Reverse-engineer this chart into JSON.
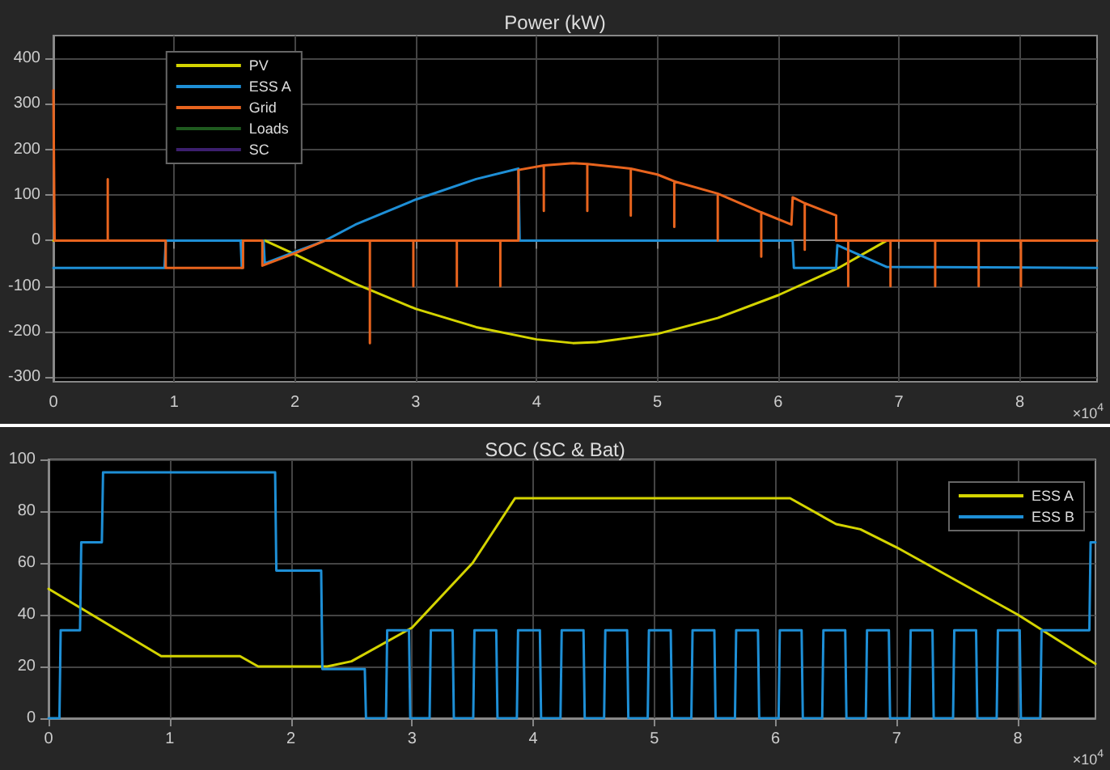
{
  "chart_data": [
    {
      "type": "line",
      "title": "Power (kW)",
      "marker": "none",
      "line_style": "solid",
      "grid": true,
      "legend": "top left",
      "xlim": [
        0,
        8.64
      ],
      "xticks": [
        0,
        1,
        2,
        3,
        4,
        5,
        6,
        7,
        8
      ],
      "ylim": [
        -310,
        450
      ],
      "yticks": [
        -300,
        -200,
        -100,
        0,
        100,
        200,
        300,
        400
      ],
      "annotations": [
        "×10$^{4}$"
      ],
      "series": [
        {
          "name": "PV",
          "color": "#d4d400",
          "x": [
            0,
            1.75,
            2,
            2.5,
            3,
            3.5,
            4,
            4.3,
            4.5,
            5,
            5.5,
            6,
            6.5,
            6.9,
            8.64
          ],
          "values": [
            0,
            0,
            -30,
            -95,
            -150,
            -190,
            -217,
            -225,
            -223,
            -205,
            -170,
            -120,
            -60,
            0,
            0
          ]
        },
        {
          "name": "ESS A",
          "color": "#1e8fd6",
          "x": [
            0,
            0.92,
            0.93,
            1.55,
            1.56,
            1.57,
            1.74,
            1.75,
            2,
            2.25,
            2.5,
            3,
            3.5,
            3.85,
            3.86,
            6.12,
            6.13,
            6.48,
            6.49,
            6.9,
            8.64
          ],
          "values": [
            -60,
            -60,
            0,
            0,
            -60,
            0,
            0,
            -50,
            -25,
            0,
            35,
            90,
            135,
            158,
            0,
            0,
            -60,
            -60,
            -10,
            -58,
            -60
          ]
        },
        {
          "name": "Grid",
          "color": "#e8641e",
          "x": [
            0,
            0.01,
            0.45,
            0.45,
            0.45,
            0.93,
            0.93,
            1.57,
            1.57,
            1.73,
            1.73,
            2,
            2.25,
            2.62,
            2.62,
            2.62,
            2.98,
            2.98,
            2.98,
            3.34,
            3.34,
            3.34,
            3.7,
            3.7,
            3.7,
            3.85,
            3.85,
            4.06,
            4.06,
            4.06,
            4.3,
            4.42,
            4.42,
            4.42,
            4.78,
            4.78,
            4.78,
            5,
            5.14,
            5.14,
            5.14,
            5.5,
            5.5,
            5.5,
            5.86,
            5.86,
            5.86,
            6.11,
            6.12,
            6.22,
            6.22,
            6.22,
            6.48,
            6.48,
            6.58,
            6.58,
            6.58,
            6.93,
            6.93,
            6.93,
            7.3,
            7.3,
            7.3,
            7.66,
            7.66,
            7.66,
            8.01,
            8.01,
            8.01,
            8.64
          ],
          "values": [
            330,
            0,
            0,
            135,
            0,
            0,
            -60,
            -60,
            0,
            0,
            -55,
            -28,
            0,
            0,
            -225,
            0,
            0,
            -100,
            0,
            0,
            -100,
            0,
            0,
            -100,
            0,
            0,
            155,
            165,
            65,
            165,
            170,
            168,
            65,
            168,
            158,
            55,
            158,
            145,
            130,
            30,
            130,
            103,
            0,
            103,
            62,
            -35,
            62,
            35,
            95,
            82,
            -20,
            82,
            55,
            0,
            0,
            -100,
            0,
            0,
            -100,
            0,
            0,
            -100,
            0,
            0,
            -100,
            0,
            0,
            -100,
            0,
            0
          ]
        },
        {
          "name": "Loads",
          "color": "#1f5a1f"
        },
        {
          "name": "SC",
          "color": "#3c1f6e"
        }
      ]
    },
    {
      "type": "line",
      "title": "SOC (SC & Bat)",
      "marker": "none",
      "line_style": "solid",
      "grid": true,
      "legend": "top right",
      "xlim": [
        0,
        8.64
      ],
      "xticks": [
        0,
        1,
        2,
        3,
        4,
        5,
        6,
        7,
        8
      ],
      "ylim": [
        0,
        100
      ],
      "yticks": [
        0,
        20,
        40,
        60,
        80,
        100
      ],
      "annotations": [
        "×10$^{4}$"
      ],
      "series": [
        {
          "name": "ESS A",
          "color": "#d4d400",
          "x": [
            0,
            0.93,
            1.58,
            1.73,
            2.3,
            2.5,
            3,
            3.5,
            3.85,
            6.12,
            6.5,
            6.7,
            7,
            8,
            8.64
          ],
          "values": [
            50,
            24,
            24,
            20,
            20,
            22,
            35,
            60,
            85,
            85,
            75,
            73,
            66,
            40,
            21
          ]
        },
        {
          "name": "ESS B",
          "color": "#1e8fd6",
          "x": [
            0,
            0.09,
            0.1,
            0.26,
            0.27,
            0.44,
            0.45,
            1.87,
            1.88,
            2.25,
            2.26,
            2.61,
            2.62,
            2.785,
            2.795,
            2.975,
            2.985,
            3.145,
            3.155,
            3.335,
            3.345,
            3.505,
            3.515,
            3.695,
            3.705,
            3.865,
            3.875,
            4.055,
            4.065,
            4.225,
            4.235,
            4.415,
            4.425,
            4.585,
            4.595,
            4.775,
            4.785,
            4.945,
            4.955,
            5.135,
            5.145,
            5.305,
            5.315,
            5.495,
            5.505,
            5.665,
            5.675,
            5.855,
            5.865,
            6.025,
            6.035,
            6.215,
            6.225,
            6.385,
            6.395,
            6.575,
            6.585,
            6.745,
            6.755,
            6.935,
            6.945,
            7.105,
            7.115,
            7.295,
            7.305,
            7.465,
            7.475,
            7.655,
            7.665,
            7.825,
            7.835,
            8.015,
            8.025,
            8.185,
            8.195,
            8.59,
            8.6,
            8.64
          ],
          "values": [
            0,
            0,
            34,
            34,
            68,
            68,
            95,
            95,
            57,
            57,
            19,
            19,
            0,
            0,
            34,
            34,
            0,
            0,
            34,
            34,
            0,
            0,
            34,
            34,
            0,
            0,
            34,
            34,
            0,
            0,
            34,
            34,
            0,
            0,
            34,
            34,
            0,
            0,
            34,
            34,
            0,
            0,
            34,
            34,
            0,
            0,
            34,
            34,
            0,
            0,
            34,
            34,
            0,
            0,
            34,
            34,
            0,
            0,
            34,
            34,
            0,
            0,
            34,
            34,
            0,
            0,
            34,
            34,
            0,
            0,
            34,
            34,
            0,
            0,
            34,
            34,
            68,
            68
          ]
        }
      ]
    }
  ]
}
